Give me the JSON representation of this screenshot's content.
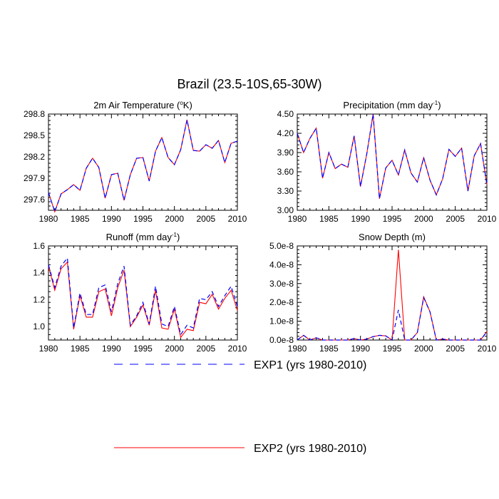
{
  "figure": {
    "title": "Brazil (23.5-10S,65-30W)"
  },
  "legend": {
    "items": [
      {
        "label": "EXP1 (yrs 1980-2010)",
        "color": "#0000ff",
        "dash": "dashed"
      },
      {
        "label": "EXP2 (yrs 1980-2010)",
        "color": "#ff0000",
        "dash": "solid"
      }
    ]
  },
  "chart_data": [
    {
      "type": "line",
      "title_main": "2m Air Temperature (",
      "title_sup": "o",
      "title_end": "K)",
      "x": [
        1980,
        1981,
        1982,
        1983,
        1984,
        1985,
        1986,
        1987,
        1988,
        1989,
        1990,
        1991,
        1992,
        1993,
        1994,
        1995,
        1996,
        1997,
        1998,
        1999,
        2000,
        2001,
        2002,
        2003,
        2004,
        2005,
        2006,
        2007,
        2008,
        2009,
        2010
      ],
      "xlim": [
        1980,
        2010
      ],
      "xticks": [
        1980,
        1985,
        1990,
        1995,
        2000,
        2005,
        2010
      ],
      "ylim": [
        297.45,
        298.8
      ],
      "yticks": [
        297.6,
        297.9,
        298.2,
        298.5,
        298.8
      ],
      "ytick_labels": [
        "297.6",
        "297.9",
        "298.2",
        "298.5",
        "298.8"
      ],
      "series": [
        {
          "name": "EXP1",
          "values": [
            297.7,
            297.43,
            297.68,
            297.74,
            297.81,
            297.73,
            298.04,
            298.18,
            298.05,
            297.62,
            297.95,
            297.97,
            297.59,
            297.95,
            298.18,
            298.19,
            297.86,
            298.28,
            298.47,
            298.19,
            298.09,
            298.3,
            298.72,
            298.29,
            298.28,
            298.37,
            298.32,
            298.43,
            298.12,
            298.39,
            298.42
          ]
        },
        {
          "name": "EXP2",
          "values": [
            297.7,
            297.43,
            297.68,
            297.74,
            297.81,
            297.73,
            298.04,
            298.18,
            298.05,
            297.62,
            297.95,
            297.97,
            297.59,
            297.95,
            298.18,
            298.19,
            297.86,
            298.28,
            298.47,
            298.19,
            298.09,
            298.3,
            298.72,
            298.29,
            298.28,
            298.37,
            298.32,
            298.43,
            298.12,
            298.39,
            298.42
          ]
        }
      ]
    },
    {
      "type": "line",
      "title_main": "Precipitation (mm day",
      "title_sup": "-1",
      "title_end": ")",
      "x": [
        1980,
        1981,
        1982,
        1983,
        1984,
        1985,
        1986,
        1987,
        1988,
        1989,
        1990,
        1991,
        1992,
        1993,
        1994,
        1995,
        1996,
        1997,
        1998,
        1999,
        2000,
        2001,
        2002,
        2003,
        2004,
        2005,
        2006,
        2007,
        2008,
        2009,
        2010
      ],
      "xlim": [
        1980,
        2010
      ],
      "xticks": [
        1980,
        1985,
        1990,
        1995,
        2000,
        2005,
        2010
      ],
      "ylim": [
        3.0,
        4.5
      ],
      "yticks": [
        3.0,
        3.3,
        3.6,
        3.9,
        4.2,
        4.5
      ],
      "ytick_labels": [
        "3.00",
        "3.30",
        "3.60",
        "3.90",
        "4.20",
        "4.50"
      ],
      "series": [
        {
          "name": "EXP1",
          "values": [
            4.2,
            3.9,
            4.12,
            4.28,
            3.5,
            3.9,
            3.65,
            3.72,
            3.67,
            4.16,
            3.37,
            3.88,
            4.5,
            3.18,
            3.66,
            3.78,
            3.55,
            3.94,
            3.58,
            3.44,
            3.82,
            3.47,
            3.24,
            3.49,
            3.95,
            3.84,
            3.97,
            3.3,
            3.85,
            4.04,
            3.4
          ]
        },
        {
          "name": "EXP2",
          "values": [
            4.2,
            3.9,
            4.12,
            4.28,
            3.5,
            3.9,
            3.65,
            3.72,
            3.67,
            4.16,
            3.37,
            3.88,
            4.5,
            3.18,
            3.66,
            3.78,
            3.55,
            3.94,
            3.58,
            3.44,
            3.82,
            3.47,
            3.24,
            3.49,
            3.95,
            3.84,
            3.97,
            3.3,
            3.85,
            4.04,
            3.4
          ]
        }
      ]
    },
    {
      "type": "line",
      "title_main": "Runoff (mm day",
      "title_sup": "-1",
      "title_end": ")",
      "x": [
        1980,
        1981,
        1982,
        1983,
        1984,
        1985,
        1986,
        1987,
        1988,
        1989,
        1990,
        1991,
        1992,
        1993,
        1994,
        1995,
        1996,
        1997,
        1998,
        1999,
        2000,
        2001,
        2002,
        2003,
        2004,
        2005,
        2006,
        2007,
        2008,
        2009,
        2010
      ],
      "xlim": [
        1980,
        2010
      ],
      "xticks": [
        1980,
        1985,
        1990,
        1995,
        2000,
        2005,
        2010
      ],
      "ylim": [
        0.9,
        1.6
      ],
      "yticks": [
        1.0,
        1.2,
        1.4,
        1.6
      ],
      "ytick_labels": [
        "1.0",
        "1.2",
        "1.4",
        "1.6"
      ],
      "series": [
        {
          "name": "EXP1",
          "values": [
            1.46,
            1.29,
            1.45,
            1.51,
            0.99,
            1.25,
            1.09,
            1.09,
            1.29,
            1.31,
            1.11,
            1.32,
            1.45,
            1.01,
            1.08,
            1.18,
            1.02,
            1.3,
            1.02,
            1.0,
            1.15,
            0.94,
            1.01,
            0.99,
            1.21,
            1.2,
            1.26,
            1.15,
            1.23,
            1.3,
            1.15
          ]
        },
        {
          "name": "EXP2",
          "values": [
            1.45,
            1.27,
            1.43,
            1.48,
            0.98,
            1.23,
            1.07,
            1.07,
            1.26,
            1.28,
            1.08,
            1.29,
            1.42,
            1.0,
            1.07,
            1.16,
            1.01,
            1.27,
            0.99,
            0.98,
            1.13,
            0.92,
            0.98,
            0.97,
            1.18,
            1.17,
            1.24,
            1.13,
            1.21,
            1.27,
            1.12
          ]
        }
      ]
    },
    {
      "type": "line",
      "title_main": "Snow Depth (m)",
      "title_sup": "",
      "title_end": "",
      "x": [
        1980,
        1981,
        1982,
        1983,
        1984,
        1985,
        1986,
        1987,
        1988,
        1989,
        1990,
        1991,
        1992,
        1993,
        1994,
        1995,
        1996,
        1997,
        1998,
        1999,
        2000,
        2001,
        2002,
        2003,
        2004,
        2005,
        2006,
        2007,
        2008,
        2009,
        2010
      ],
      "xlim": [
        1980,
        2010
      ],
      "xticks": [
        1980,
        1985,
        1990,
        1995,
        2000,
        2005,
        2010
      ],
      "ylim": [
        0,
        5e-08
      ],
      "yticks": [
        0,
        1e-08,
        2e-08,
        3e-08,
        4e-08,
        5e-08
      ],
      "ytick_labels": [
        "0.0e-8",
        "1.0e-8",
        "2.0e-8",
        "3.0e-8",
        "4.0e-8",
        "5.0e-8"
      ],
      "series": [
        {
          "name": "EXP1",
          "values": [
            0,
            2.5e-09,
            0,
            1.2e-09,
            0,
            0,
            0,
            0,
            0,
            8e-10,
            0,
            5e-10,
            1.8e-09,
            2.5e-09,
            2.2e-09,
            0,
            1.6e-08,
            0,
            0,
            4e-09,
            2.25e-08,
            1.5e-08,
            0,
            5e-10,
            0,
            0,
            0,
            0,
            0,
            0,
            4.5e-09
          ]
        },
        {
          "name": "EXP2",
          "values": [
            0,
            2.5e-09,
            0,
            1.2e-09,
            0,
            0,
            0,
            0,
            0,
            8e-10,
            0,
            5e-10,
            1.8e-09,
            2.5e-09,
            2.2e-09,
            0,
            4.8e-08,
            0,
            0,
            4e-09,
            2.3e-08,
            1.5e-08,
            0,
            5e-10,
            0,
            0,
            0,
            0,
            0,
            0,
            4.5e-09
          ]
        }
      ]
    }
  ]
}
